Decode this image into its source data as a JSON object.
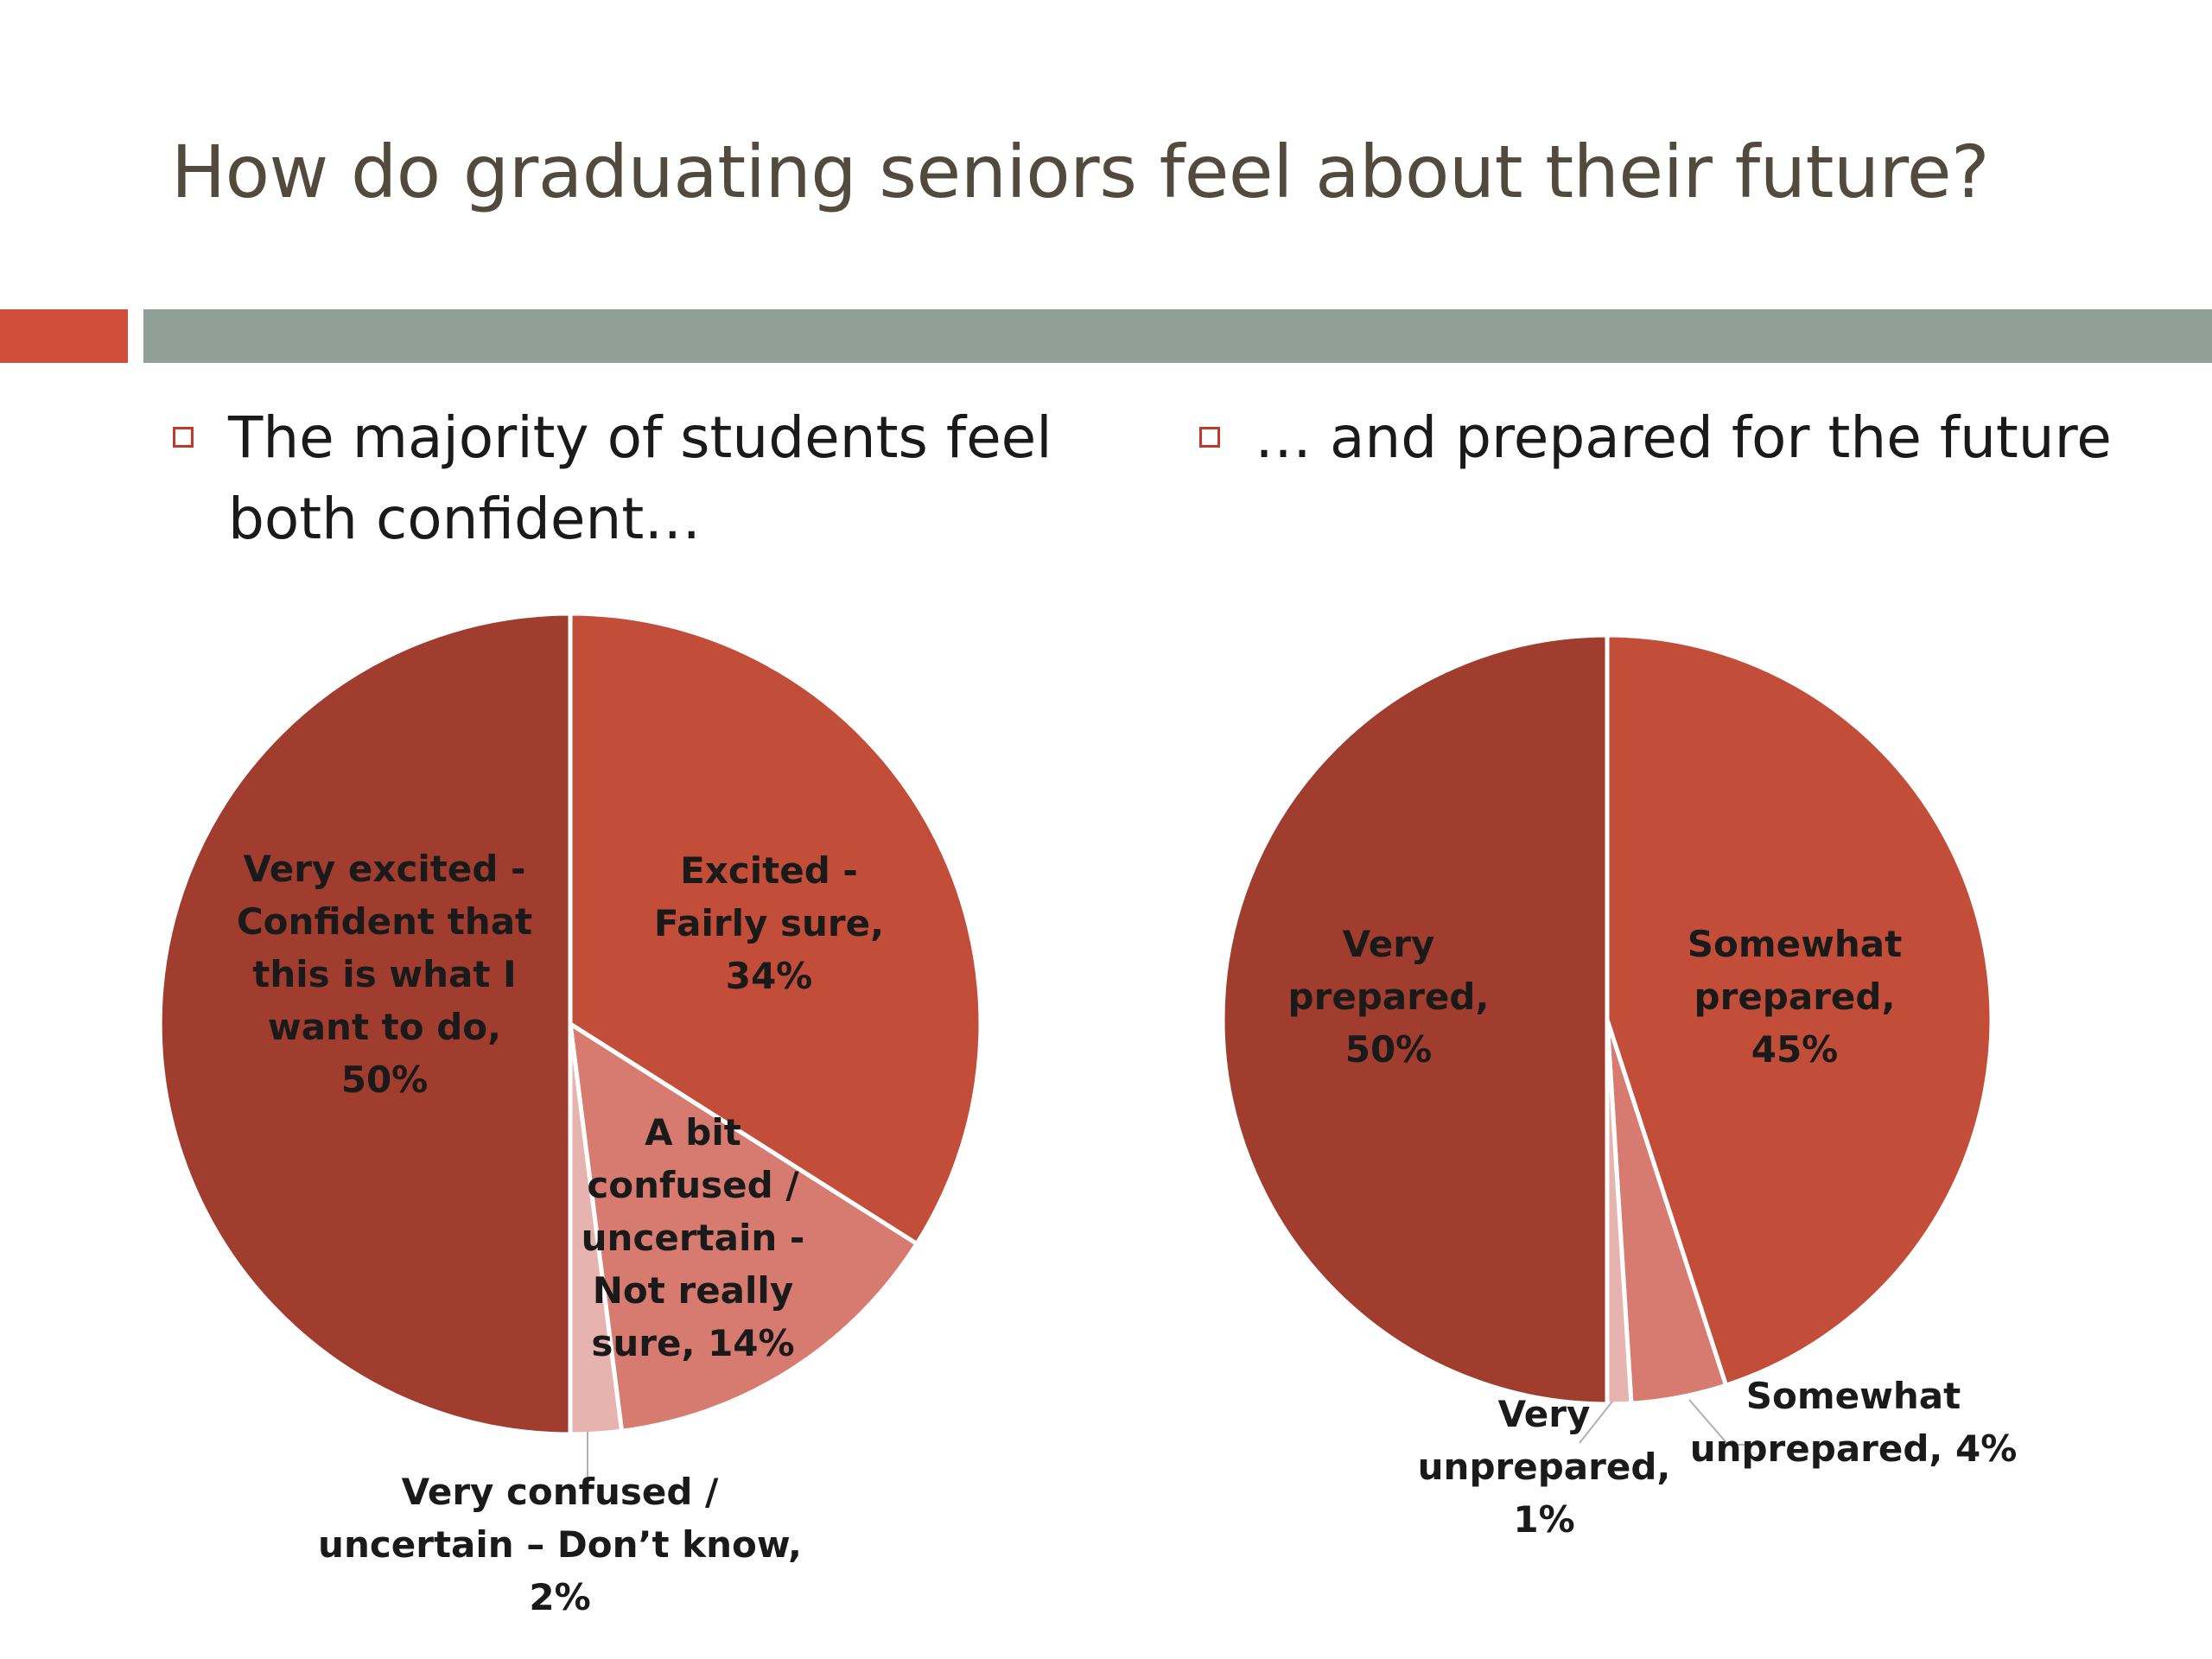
{
  "title": "How do graduating seniors feel about their future?",
  "bullets": {
    "left": "The majority of students feel both confident…",
    "right": "… and prepared for the future"
  },
  "colors": {
    "dark": "#a03d2f",
    "medium": "#c24e3a",
    "light": "#d77b71",
    "pale": "#e6b3ae",
    "accent": "#cf4f3a",
    "divider": "#909f98",
    "title": "#514a3d"
  },
  "chart_data": [
    {
      "type": "pie",
      "title": "",
      "slices": [
        {
          "label_lines": [
            "Excited -",
            "Fairly sure,",
            "34%"
          ],
          "value": 34,
          "color": "#c24e3a"
        },
        {
          "label_lines": [
            "A bit",
            "confused /",
            "uncertain -",
            "Not really",
            "sure, 14%"
          ],
          "value": 14,
          "color": "#d77b71"
        },
        {
          "label_lines": [
            "Very confused /",
            "uncertain – Don’t know,",
            "2%"
          ],
          "value": 2,
          "color": "#e6b3ae"
        },
        {
          "label_lines": [
            "Very excited -",
            "Confident that",
            "this is what I",
            "want to do,",
            "50%"
          ],
          "value": 50,
          "color": "#a03d2f"
        }
      ]
    },
    {
      "type": "pie",
      "title": "",
      "slices": [
        {
          "label_lines": [
            "Somewhat",
            "prepared,",
            "45%"
          ],
          "value": 45,
          "color": "#c24e3a"
        },
        {
          "label_lines": [
            "Somewhat",
            "unprepared, 4%"
          ],
          "value": 4,
          "color": "#d77b71"
        },
        {
          "label_lines": [
            "Very",
            "unprepared,",
            "1%"
          ],
          "value": 1,
          "color": "#e6b3ae"
        },
        {
          "label_lines": [
            "Very",
            "prepared,",
            "50%"
          ],
          "value": 50,
          "color": "#a03d2f"
        }
      ]
    }
  ]
}
